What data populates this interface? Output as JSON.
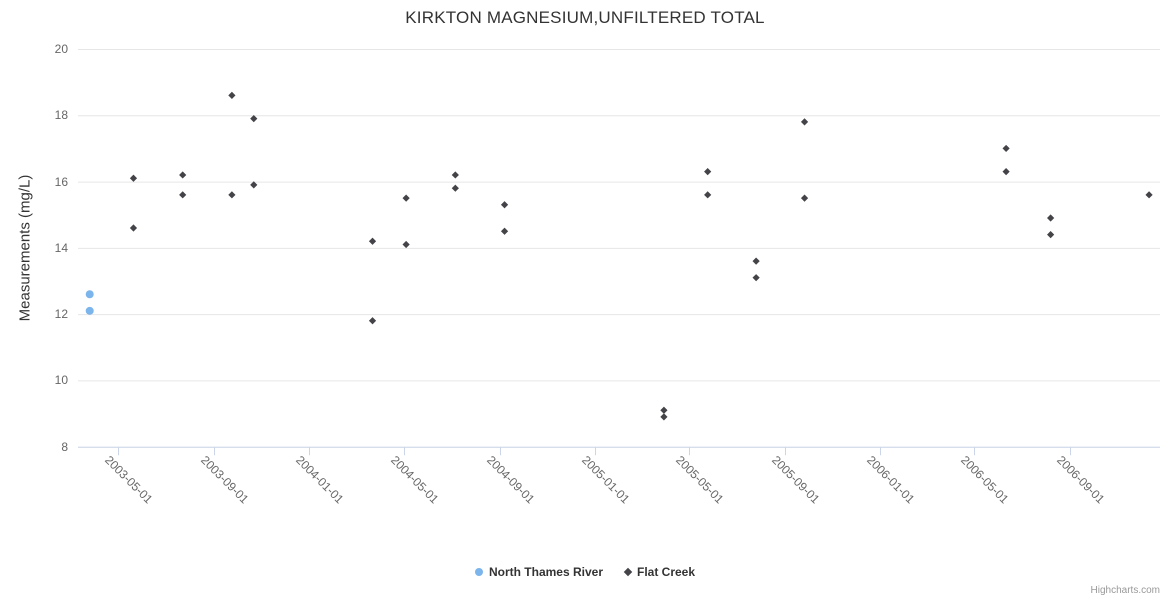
{
  "chart_data": {
    "type": "scatter",
    "title": "KIRKTON MAGNESIUM,UNFILTERED TOTAL",
    "xlabel": "",
    "ylabel": "Measurements (mg/L)",
    "ylim": [
      8,
      20
    ],
    "y_ticks": [
      8,
      10,
      12,
      14,
      16,
      18,
      20
    ],
    "x_ticks": [
      "2003-05-01",
      "2003-09-01",
      "2004-01-01",
      "2004-05-01",
      "2004-09-01",
      "2005-01-01",
      "2005-05-01",
      "2005-09-01",
      "2006-01-01",
      "2006-05-01",
      "2006-09-01"
    ],
    "x_range": [
      "2003-03-11",
      "2006-12-25"
    ],
    "grid": true,
    "legend_position": "bottom-center",
    "colors": {
      "grid": "#e6e6e6",
      "axis": "#ccd6eb",
      "title_text": "#333333",
      "label_text": "#666666"
    },
    "series": [
      {
        "name": "North Thames River",
        "color": "#7cb5ec",
        "marker": "circle",
        "points": [
          {
            "date": "2003-03-26",
            "value": 12.6
          },
          {
            "date": "2003-03-26",
            "value": 12.1
          }
        ]
      },
      {
        "name": "Flat Creek",
        "color": "#434348",
        "marker": "diamond",
        "points": [
          {
            "date": "2003-05-21",
            "value": 16.1
          },
          {
            "date": "2003-05-21",
            "value": 14.6
          },
          {
            "date": "2003-07-23",
            "value": 16.2
          },
          {
            "date": "2003-07-23",
            "value": 15.6
          },
          {
            "date": "2003-09-24",
            "value": 18.6
          },
          {
            "date": "2003-09-24",
            "value": 15.6
          },
          {
            "date": "2003-10-22",
            "value": 17.9
          },
          {
            "date": "2003-10-22",
            "value": 15.9
          },
          {
            "date": "2004-03-22",
            "value": 14.2
          },
          {
            "date": "2004-03-22",
            "value": 11.8
          },
          {
            "date": "2004-05-04",
            "value": 15.5
          },
          {
            "date": "2004-05-04",
            "value": 14.1
          },
          {
            "date": "2004-07-06",
            "value": 16.2
          },
          {
            "date": "2004-07-06",
            "value": 15.8
          },
          {
            "date": "2004-09-07",
            "value": 15.3
          },
          {
            "date": "2004-09-07",
            "value": 14.5
          },
          {
            "date": "2005-03-30",
            "value": 9.1
          },
          {
            "date": "2005-03-30",
            "value": 8.9
          },
          {
            "date": "2005-05-25",
            "value": 16.3
          },
          {
            "date": "2005-05-25",
            "value": 15.6
          },
          {
            "date": "2005-07-26",
            "value": 13.6
          },
          {
            "date": "2005-07-26",
            "value": 13.1
          },
          {
            "date": "2005-09-26",
            "value": 17.8
          },
          {
            "date": "2005-09-26",
            "value": 15.5
          },
          {
            "date": "2006-06-11",
            "value": 17.0
          },
          {
            "date": "2006-06-11",
            "value": 16.3
          },
          {
            "date": "2006-08-07",
            "value": 14.9
          },
          {
            "date": "2006-08-07",
            "value": 14.4
          },
          {
            "date": "2006-12-11",
            "value": 15.6
          }
        ]
      }
    ]
  },
  "credits": {
    "label": "Highcharts.com"
  }
}
